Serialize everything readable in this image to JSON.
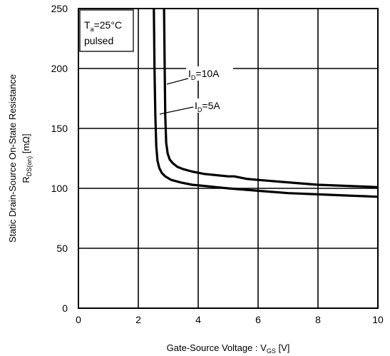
{
  "chart_data": {
    "type": "line",
    "xlabel": "Gate-Source Voltage : V",
    "xlabel_sub": "GS",
    "xlabel_unit": " [V]",
    "ylabel_line1": "Static Drain-Source On-State Resistance",
    "ylabel_line2_main": "R",
    "ylabel_line2_sub": "DS(on)",
    "ylabel_line2_unit": " [mΩ]",
    "xlim": [
      0,
      10
    ],
    "ylim": [
      0,
      250
    ],
    "x_ticks": [
      0,
      2,
      4,
      6,
      8,
      10
    ],
    "y_ticks": [
      0,
      50,
      100,
      150,
      200,
      250
    ],
    "grid": true,
    "condition_box": {
      "line1_main": "T",
      "line1_sub": "a",
      "line1_rest": "=25°C",
      "line2": "pulsed"
    },
    "series": [
      {
        "name": "ID=10A",
        "label_main": "I",
        "label_sub": "D",
        "label_rest": "=10A",
        "x": [
          2.86,
          2.88,
          2.9,
          2.93,
          2.98,
          3.05,
          3.15,
          3.3,
          3.5,
          3.8,
          4.2,
          4.6,
          5.0,
          5.2,
          5.6,
          6.0,
          7.0,
          8.0,
          9.0,
          10.0
        ],
        "y": [
          250,
          200,
          160,
          138,
          129,
          124,
          121,
          118,
          116,
          114,
          112,
          111,
          110,
          110,
          108,
          107,
          105,
          103,
          102,
          101
        ]
      },
      {
        "name": "ID=5A",
        "label_main": "I",
        "label_sub": "D",
        "label_rest": "=5A",
        "x": [
          2.52,
          2.54,
          2.57,
          2.6,
          2.64,
          2.7,
          2.78,
          2.9,
          3.1,
          3.4,
          3.8,
          4.2,
          4.6,
          5.0,
          6.0,
          7.0,
          8.0,
          9.0,
          10.0
        ],
        "y": [
          250,
          200,
          160,
          135,
          123,
          117,
          113,
          110,
          107,
          105,
          103,
          102,
          101,
          100,
          98,
          96,
          95,
          94,
          93
        ]
      }
    ]
  }
}
